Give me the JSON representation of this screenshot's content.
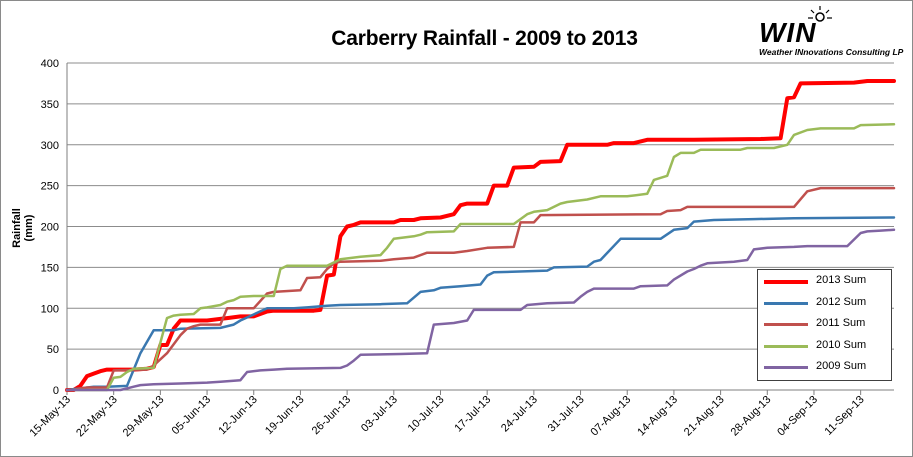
{
  "title": "Carberry Rainfall - 2009 to 2013",
  "logo": {
    "word": "WIN",
    "tagline": "Weather INnovations Consulting LP"
  },
  "chart_data": {
    "type": "line",
    "title": "Carberry Rainfall - 2009 to 2013",
    "ylabel": "Rainfall (mm)",
    "xlabel": "",
    "ylim": [
      0,
      400
    ],
    "yticks": [
      0,
      50,
      100,
      150,
      200,
      250,
      300,
      350,
      400
    ],
    "xlim": [
      "2013-05-15",
      "2013-09-16"
    ],
    "xtick_labels": [
      "15-May-13",
      "22-May-13",
      "29-May-13",
      "05-Jun-13",
      "12-Jun-13",
      "19-Jun-13",
      "26-Jun-13",
      "03-Jul-13",
      "10-Jul-13",
      "17-Jul-13",
      "24-Jul-13",
      "31-Jul-13",
      "07-Aug-13",
      "14-Aug-13",
      "21-Aug-13",
      "28-Aug-13",
      "04-Sep-13",
      "11-Sep-13"
    ],
    "grid": "horizontal",
    "legend_position": "bottom-right",
    "series": [
      {
        "name": "2013 Sum",
        "color": "#ff0000",
        "width": 4,
        "points": [
          [
            "2013-05-15",
            0
          ],
          [
            "2013-05-16",
            0
          ],
          [
            "2013-05-17",
            5
          ],
          [
            "2013-05-18",
            17
          ],
          [
            "2013-05-19",
            20
          ],
          [
            "2013-05-20",
            23
          ],
          [
            "2013-05-21",
            25
          ],
          [
            "2013-05-22",
            25
          ],
          [
            "2013-05-23",
            25
          ],
          [
            "2013-05-25",
            25
          ],
          [
            "2013-05-27",
            26
          ],
          [
            "2013-05-28",
            28
          ],
          [
            "2013-05-29",
            55
          ],
          [
            "2013-05-30",
            55
          ],
          [
            "2013-05-31",
            75
          ],
          [
            "2013-06-01",
            85
          ],
          [
            "2013-06-05",
            85
          ],
          [
            "2013-06-07",
            87
          ],
          [
            "2013-06-08",
            88
          ],
          [
            "2013-06-10",
            90
          ],
          [
            "2013-06-12",
            90
          ],
          [
            "2013-06-14",
            96
          ],
          [
            "2013-06-15",
            97
          ],
          [
            "2013-06-21",
            97
          ],
          [
            "2013-06-22",
            98
          ],
          [
            "2013-06-23",
            140
          ],
          [
            "2013-06-24",
            141
          ],
          [
            "2013-06-25",
            188
          ],
          [
            "2013-06-26",
            200
          ],
          [
            "2013-06-27",
            202
          ],
          [
            "2013-06-28",
            205
          ],
          [
            "2013-07-03",
            205
          ],
          [
            "2013-07-04",
            208
          ],
          [
            "2013-07-06",
            208
          ],
          [
            "2013-07-07",
            210
          ],
          [
            "2013-07-10",
            211
          ],
          [
            "2013-07-12",
            215
          ],
          [
            "2013-07-13",
            226
          ],
          [
            "2013-07-14",
            228
          ],
          [
            "2013-07-17",
            228
          ],
          [
            "2013-07-18",
            250
          ],
          [
            "2013-07-20",
            250
          ],
          [
            "2013-07-21",
            272
          ],
          [
            "2013-07-24",
            273
          ],
          [
            "2013-07-25",
            279
          ],
          [
            "2013-07-28",
            280
          ],
          [
            "2013-07-29",
            300
          ],
          [
            "2013-08-04",
            300
          ],
          [
            "2013-08-05",
            302
          ],
          [
            "2013-08-08",
            302
          ],
          [
            "2013-08-10",
            306
          ],
          [
            "2013-08-17",
            306
          ],
          [
            "2013-08-27",
            307
          ],
          [
            "2013-08-30",
            308
          ],
          [
            "2013-08-31",
            357
          ],
          [
            "2013-09-01",
            358
          ],
          [
            "2013-09-02",
            375
          ],
          [
            "2013-09-10",
            376
          ],
          [
            "2013-09-12",
            378
          ],
          [
            "2013-09-16",
            378
          ]
        ]
      },
      {
        "name": "2012 Sum",
        "color": "#3a78b0",
        "width": 2.5,
        "points": [
          [
            "2013-05-15",
            0
          ],
          [
            "2013-05-17",
            2
          ],
          [
            "2013-05-19",
            4
          ],
          [
            "2013-05-21",
            4
          ],
          [
            "2013-05-24",
            5
          ],
          [
            "2013-05-25",
            25
          ],
          [
            "2013-05-26",
            45
          ],
          [
            "2013-05-28",
            73
          ],
          [
            "2013-05-31",
            73
          ],
          [
            "2013-06-01",
            75
          ],
          [
            "2013-06-07",
            76
          ],
          [
            "2013-06-09",
            80
          ],
          [
            "2013-06-10",
            85
          ],
          [
            "2013-06-14",
            100
          ],
          [
            "2013-06-18",
            100
          ],
          [
            "2013-06-20",
            101
          ],
          [
            "2013-06-23",
            103
          ],
          [
            "2013-06-25",
            104
          ],
          [
            "2013-07-01",
            105
          ],
          [
            "2013-07-05",
            106
          ],
          [
            "2013-07-07",
            120
          ],
          [
            "2013-07-09",
            122
          ],
          [
            "2013-07-10",
            125
          ],
          [
            "2013-07-13",
            127
          ],
          [
            "2013-07-16",
            129
          ],
          [
            "2013-07-17",
            140
          ],
          [
            "2013-07-18",
            144
          ],
          [
            "2013-07-26",
            146
          ],
          [
            "2013-07-27",
            150
          ],
          [
            "2013-08-01",
            151
          ],
          [
            "2013-08-02",
            157
          ],
          [
            "2013-08-03",
            159
          ],
          [
            "2013-08-06",
            185
          ],
          [
            "2013-08-12",
            185
          ],
          [
            "2013-08-14",
            196
          ],
          [
            "2013-08-16",
            198
          ],
          [
            "2013-08-17",
            206
          ],
          [
            "2013-08-20",
            208
          ],
          [
            "2013-08-26",
            209
          ],
          [
            "2013-09-01",
            210
          ],
          [
            "2013-09-16",
            211
          ]
        ]
      },
      {
        "name": "2011 Sum",
        "color": "#c0504d",
        "width": 2.5,
        "points": [
          [
            "2013-05-15",
            0
          ],
          [
            "2013-05-16",
            0
          ],
          [
            "2013-05-17",
            2
          ],
          [
            "2013-05-18",
            3
          ],
          [
            "2013-05-21",
            3
          ],
          [
            "2013-05-22",
            24
          ],
          [
            "2013-05-27",
            25
          ],
          [
            "2013-05-28",
            30
          ],
          [
            "2013-05-30",
            45
          ],
          [
            "2013-06-01",
            67
          ],
          [
            "2013-06-02",
            75
          ],
          [
            "2013-06-03",
            78
          ],
          [
            "2013-06-04",
            80
          ],
          [
            "2013-06-07",
            80
          ],
          [
            "2013-06-08",
            100
          ],
          [
            "2013-06-12",
            100
          ],
          [
            "2013-06-14",
            118
          ],
          [
            "2013-06-15",
            120
          ],
          [
            "2013-06-19",
            122
          ],
          [
            "2013-06-20",
            137
          ],
          [
            "2013-06-22",
            138
          ],
          [
            "2013-06-23",
            148
          ],
          [
            "2013-06-24",
            155
          ],
          [
            "2013-06-25",
            157
          ],
          [
            "2013-07-01",
            158
          ],
          [
            "2013-07-03",
            160
          ],
          [
            "2013-07-06",
            162
          ],
          [
            "2013-07-08",
            168
          ],
          [
            "2013-07-12",
            168
          ],
          [
            "2013-07-14",
            170
          ],
          [
            "2013-07-17",
            174
          ],
          [
            "2013-07-21",
            175
          ],
          [
            "2013-07-22",
            205
          ],
          [
            "2013-07-24",
            205
          ],
          [
            "2013-07-25",
            214
          ],
          [
            "2013-08-12",
            215
          ],
          [
            "2013-08-13",
            219
          ],
          [
            "2013-08-15",
            220
          ],
          [
            "2013-08-16",
            224
          ],
          [
            "2013-09-01",
            224
          ],
          [
            "2013-09-03",
            243
          ],
          [
            "2013-09-05",
            247
          ],
          [
            "2013-09-16",
            247
          ]
        ]
      },
      {
        "name": "2010 Sum",
        "color": "#9bbb59",
        "width": 2.5,
        "points": [
          [
            "2013-05-15",
            0
          ],
          [
            "2013-05-21",
            0
          ],
          [
            "2013-05-22",
            15
          ],
          [
            "2013-05-23",
            16
          ],
          [
            "2013-05-24",
            22
          ],
          [
            "2013-05-25",
            26
          ],
          [
            "2013-05-28",
            27
          ],
          [
            "2013-05-29",
            58
          ],
          [
            "2013-05-30",
            88
          ],
          [
            "2013-05-31",
            91
          ],
          [
            "2013-06-01",
            92
          ],
          [
            "2013-06-03",
            93
          ],
          [
            "2013-06-04",
            100
          ],
          [
            "2013-06-05",
            101
          ],
          [
            "2013-06-07",
            104
          ],
          [
            "2013-06-08",
            108
          ],
          [
            "2013-06-09",
            110
          ],
          [
            "2013-06-10",
            114
          ],
          [
            "2013-06-12",
            115
          ],
          [
            "2013-06-15",
            115
          ],
          [
            "2013-06-16",
            148
          ],
          [
            "2013-06-17",
            152
          ],
          [
            "2013-06-23",
            152
          ],
          [
            "2013-06-25",
            160
          ],
          [
            "2013-06-28",
            163
          ],
          [
            "2013-07-01",
            165
          ],
          [
            "2013-07-02",
            174
          ],
          [
            "2013-07-03",
            185
          ],
          [
            "2013-07-06",
            188
          ],
          [
            "2013-07-07",
            190
          ],
          [
            "2013-07-08",
            193
          ],
          [
            "2013-07-12",
            194
          ],
          [
            "2013-07-13",
            203
          ],
          [
            "2013-07-21",
            203
          ],
          [
            "2013-07-23",
            215
          ],
          [
            "2013-07-24",
            218
          ],
          [
            "2013-07-26",
            220
          ],
          [
            "2013-07-28",
            228
          ],
          [
            "2013-07-29",
            230
          ],
          [
            "2013-08-01",
            233
          ],
          [
            "2013-08-03",
            237
          ],
          [
            "2013-08-07",
            237
          ],
          [
            "2013-08-10",
            240
          ],
          [
            "2013-08-11",
            257
          ],
          [
            "2013-08-13",
            262
          ],
          [
            "2013-08-14",
            285
          ],
          [
            "2013-08-15",
            290
          ],
          [
            "2013-08-17",
            290
          ],
          [
            "2013-08-18",
            294
          ],
          [
            "2013-08-24",
            294
          ],
          [
            "2013-08-25",
            296
          ],
          [
            "2013-08-29",
            296
          ],
          [
            "2013-08-31",
            300
          ],
          [
            "2013-09-01",
            312
          ],
          [
            "2013-09-03",
            318
          ],
          [
            "2013-09-05",
            320
          ],
          [
            "2013-09-10",
            320
          ],
          [
            "2013-09-11",
            324
          ],
          [
            "2013-09-16",
            325
          ]
        ]
      },
      {
        "name": "2009 Sum",
        "color": "#8064a2",
        "width": 2.5,
        "points": [
          [
            "2013-05-15",
            0
          ],
          [
            "2013-05-23",
            0
          ],
          [
            "2013-05-24",
            2
          ],
          [
            "2013-05-25",
            4
          ],
          [
            "2013-05-26",
            6
          ],
          [
            "2013-05-28",
            7
          ],
          [
            "2013-06-01",
            8
          ],
          [
            "2013-06-05",
            9
          ],
          [
            "2013-06-07",
            10
          ],
          [
            "2013-06-10",
            12
          ],
          [
            "2013-06-11",
            22
          ],
          [
            "2013-06-13",
            24
          ],
          [
            "2013-06-15",
            25
          ],
          [
            "2013-06-17",
            26
          ],
          [
            "2013-06-25",
            27
          ],
          [
            "2013-06-26",
            30
          ],
          [
            "2013-06-27",
            36
          ],
          [
            "2013-06-28",
            43
          ],
          [
            "2013-07-04",
            44
          ],
          [
            "2013-07-08",
            45
          ],
          [
            "2013-07-09",
            80
          ],
          [
            "2013-07-12",
            82
          ],
          [
            "2013-07-14",
            85
          ],
          [
            "2013-07-15",
            98
          ],
          [
            "2013-07-22",
            98
          ],
          [
            "2013-07-23",
            104
          ],
          [
            "2013-07-26",
            106
          ],
          [
            "2013-07-30",
            107
          ],
          [
            "2013-07-31",
            114
          ],
          [
            "2013-08-01",
            120
          ],
          [
            "2013-08-02",
            124
          ],
          [
            "2013-08-08",
            124
          ],
          [
            "2013-08-09",
            127
          ],
          [
            "2013-08-13",
            128
          ],
          [
            "2013-08-14",
            135
          ],
          [
            "2013-08-16",
            145
          ],
          [
            "2013-08-17",
            148
          ],
          [
            "2013-08-18",
            152
          ],
          [
            "2013-08-19",
            155
          ],
          [
            "2013-08-21",
            156
          ],
          [
            "2013-08-23",
            157
          ],
          [
            "2013-08-25",
            159
          ],
          [
            "2013-08-26",
            172
          ],
          [
            "2013-08-28",
            174
          ],
          [
            "2013-09-01",
            175
          ],
          [
            "2013-09-03",
            176
          ],
          [
            "2013-09-09",
            176
          ],
          [
            "2013-09-11",
            192
          ],
          [
            "2013-09-12",
            194
          ],
          [
            "2013-09-14",
            195
          ],
          [
            "2013-09-16",
            196
          ]
        ]
      }
    ]
  }
}
